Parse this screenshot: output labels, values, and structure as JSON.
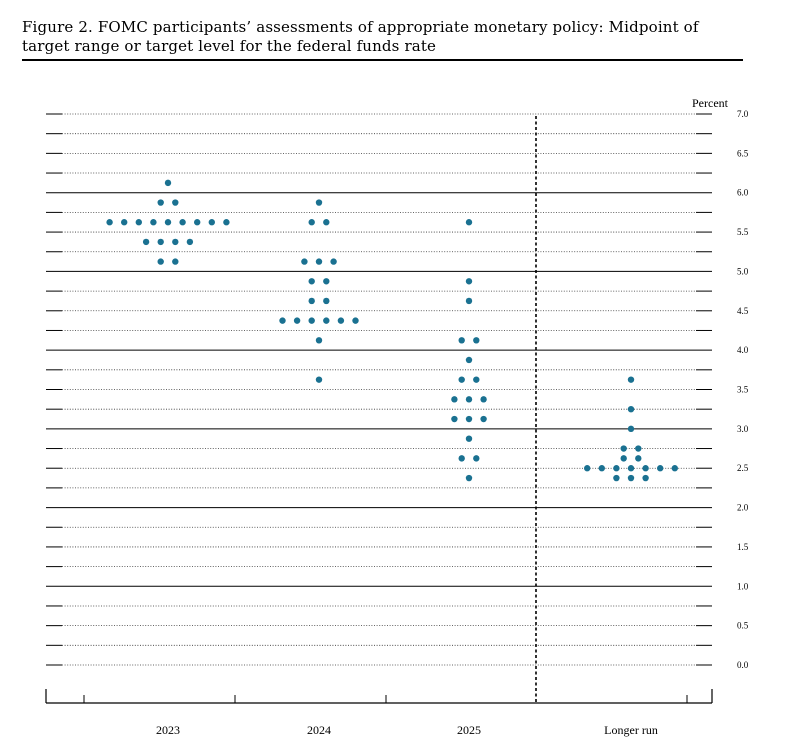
{
  "figure": {
    "title": "Figure 2.  FOMC participants’ assessments of appropriate monetary policy:  Midpoint of target range or target level for the federal funds rate"
  },
  "colors": {
    "dot": "#1a7191",
    "axis": "#000000"
  },
  "chart_data": {
    "type": "scatter",
    "unit_label": "Percent",
    "ylim": [
      0.0,
      7.0
    ],
    "y_tick_labels": [
      "0.0",
      "0.5",
      "1.0",
      "1.5",
      "2.0",
      "2.5",
      "3.0",
      "3.5",
      "4.0",
      "4.5",
      "5.0",
      "5.5",
      "6.0",
      "6.5",
      "7.0"
    ],
    "categories": [
      "2023",
      "2024",
      "2025",
      "Longer run"
    ],
    "grid": "dotted lines every 0.25, solid lines every 1.0",
    "points": [
      {
        "category": "2023",
        "values": [
          {
            "y": 6.125,
            "count": 1
          },
          {
            "y": 5.875,
            "count": 2
          },
          {
            "y": 5.625,
            "count": 9
          },
          {
            "y": 5.375,
            "count": 4
          },
          {
            "y": 5.125,
            "count": 2
          }
        ]
      },
      {
        "category": "2024",
        "values": [
          {
            "y": 5.875,
            "count": 1
          },
          {
            "y": 5.625,
            "count": 2
          },
          {
            "y": 5.125,
            "count": 3
          },
          {
            "y": 4.875,
            "count": 2
          },
          {
            "y": 4.625,
            "count": 2
          },
          {
            "y": 4.375,
            "count": 6
          },
          {
            "y": 4.125,
            "count": 1
          },
          {
            "y": 3.625,
            "count": 1
          }
        ]
      },
      {
        "category": "2025",
        "values": [
          {
            "y": 5.625,
            "count": 1
          },
          {
            "y": 4.875,
            "count": 1
          },
          {
            "y": 4.625,
            "count": 1
          },
          {
            "y": 4.125,
            "count": 2
          },
          {
            "y": 3.875,
            "count": 1
          },
          {
            "y": 3.625,
            "count": 2
          },
          {
            "y": 3.375,
            "count": 3
          },
          {
            "y": 3.125,
            "count": 3
          },
          {
            "y": 2.875,
            "count": 1
          },
          {
            "y": 2.625,
            "count": 2
          },
          {
            "y": 2.375,
            "count": 1
          }
        ]
      },
      {
        "category": "Longer run",
        "values": [
          {
            "y": 3.625,
            "count": 1
          },
          {
            "y": 3.25,
            "count": 1
          },
          {
            "y": 3.0,
            "count": 1
          },
          {
            "y": 2.75,
            "count": 2
          },
          {
            "y": 2.625,
            "count": 2
          },
          {
            "y": 2.5,
            "count": 7
          },
          {
            "y": 2.375,
            "count": 3
          }
        ]
      }
    ]
  }
}
